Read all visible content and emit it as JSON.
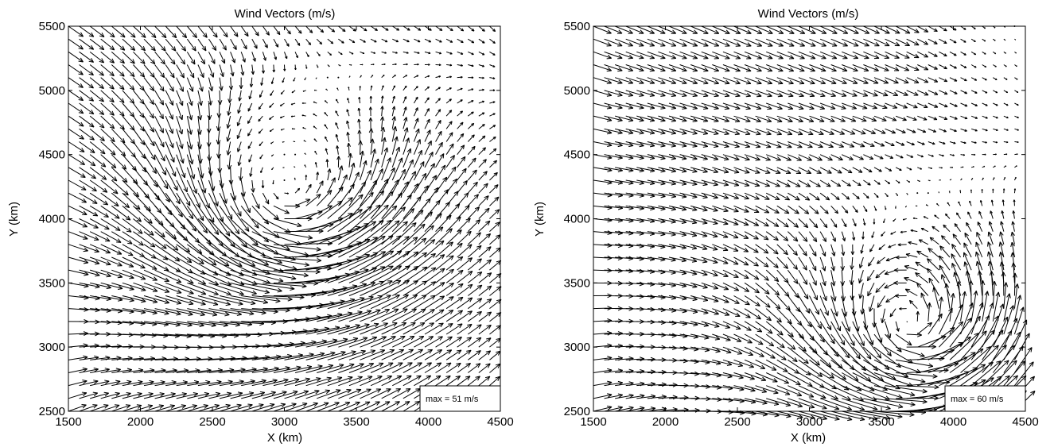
{
  "chart_data": [
    {
      "type": "quiver",
      "title": "Wind Vectors (m/s)",
      "xlabel": "X (km)",
      "ylabel": "Y (km)",
      "xlim": [
        1500,
        4500
      ],
      "ylim": [
        2500,
        5500
      ],
      "xticks": [
        1500,
        2000,
        2500,
        3000,
        3500,
        4000,
        4500
      ],
      "yticks": [
        2500,
        3000,
        3500,
        4000,
        4500,
        5000,
        5500
      ],
      "grid": false,
      "legend": "max = 51 m/s",
      "legend_position": "bottom-right",
      "max_speed": 51,
      "units": "m/s",
      "grid_spacing_km": {
        "x": 75,
        "y": 100
      },
      "pattern": "cyclonic circulation centered near (3000, 4150) km",
      "sample_vectors": [
        {
          "x": 1500,
          "y": 5500,
          "u": 35,
          "v": -15
        },
        {
          "x": 1500,
          "y": 3800,
          "u": 45,
          "v": 0
        },
        {
          "x": 1500,
          "y": 2600,
          "u": 40,
          "v": 20
        },
        {
          "x": 2500,
          "y": 3000,
          "u": 35,
          "v": 35
        },
        {
          "x": 3500,
          "y": 3500,
          "u": 15,
          "v": 40
        },
        {
          "x": 4000,
          "y": 4500,
          "u": -5,
          "v": 25
        },
        {
          "x": 3500,
          "y": 5300,
          "u": 0,
          "v": 5
        }
      ]
    },
    {
      "type": "quiver",
      "title": "Wind Vectors (m/s)",
      "xlabel": "X (km)",
      "ylabel": "Y (km)",
      "xlim": [
        1500,
        4500
      ],
      "ylim": [
        2500,
        5500
      ],
      "xticks": [
        1500,
        2000,
        2500,
        3000,
        3500,
        4000,
        4500
      ],
      "yticks": [
        2500,
        3000,
        3500,
        4000,
        4500,
        5000,
        5500
      ],
      "grid": false,
      "legend": "max = 60 m/s",
      "legend_position": "bottom-right",
      "max_speed": 60,
      "units": "m/s",
      "grid_spacing_km": {
        "x": 75,
        "y": 100
      },
      "pattern": "cyclonic circulation centered near (3700, 3100) km",
      "sample_vectors": [
        {
          "x": 1500,
          "y": 5500,
          "u": 35,
          "v": -15
        },
        {
          "x": 1500,
          "y": 4500,
          "u": 45,
          "v": 0
        },
        {
          "x": 1500,
          "y": 2600,
          "u": 40,
          "v": 15
        },
        {
          "x": 3000,
          "y": 3000,
          "u": 40,
          "v": 5
        },
        {
          "x": 3500,
          "y": 3000,
          "u": 5,
          "v": 35
        },
        {
          "x": 4000,
          "y": 4500,
          "u": 20,
          "v": 0
        },
        {
          "x": 4400,
          "y": 5400,
          "u": 5,
          "v": 0
        }
      ]
    }
  ]
}
